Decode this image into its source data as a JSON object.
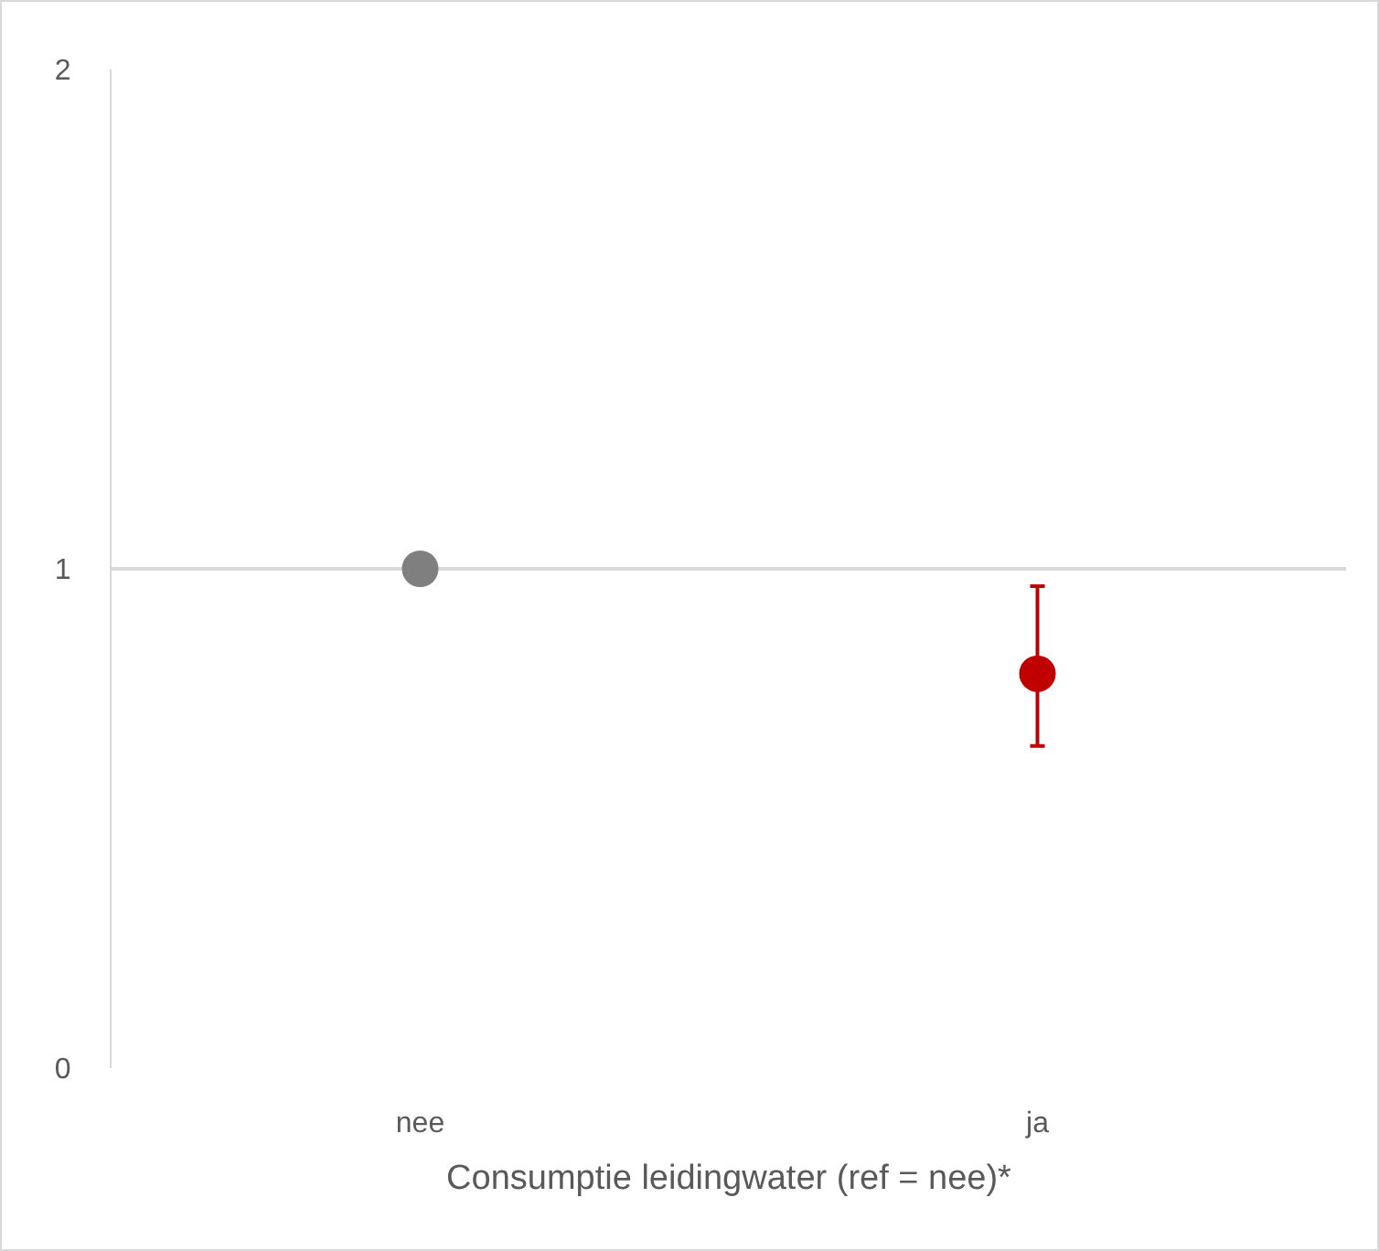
{
  "chart_data": {
    "type": "scatter",
    "xlabel": "Consumptie leidingwater (ref = nee)*",
    "categories": [
      "nee",
      "ja"
    ],
    "values": [
      1,
      0.79
    ],
    "colors": [
      "#7f7f7f",
      "#c00000"
    ],
    "errors": [
      null,
      [
        0.645,
        0.965
      ]
    ],
    "marker": "circle",
    "ylim": [
      0,
      2
    ],
    "yticks": [
      0,
      1,
      2
    ],
    "grid": false,
    "ref_lines": [
      {
        "axis": "y",
        "value": 1,
        "color": "#d9d9d9"
      }
    ]
  }
}
